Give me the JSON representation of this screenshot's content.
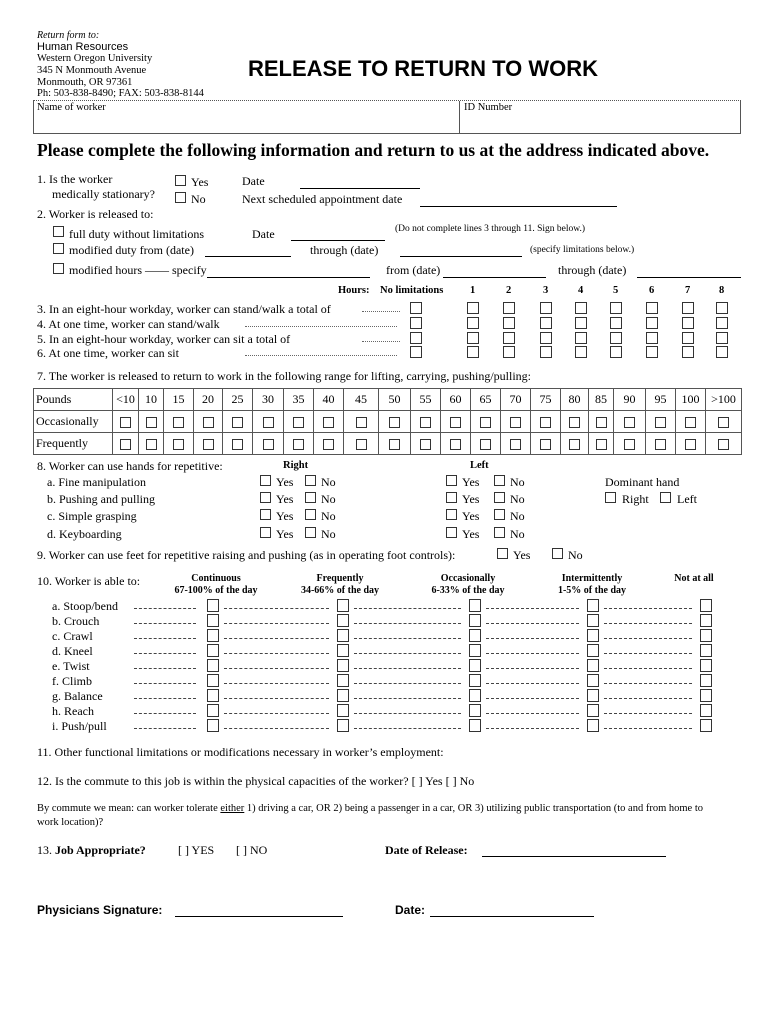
{
  "header": {
    "return_label": "Return form to:",
    "dept": "Human Resources",
    "org": "Western Oregon University",
    "street": "345 N Monmouth Avenue",
    "city": "Monmouth,  OR  97361",
    "phone": "Ph: 503-838-8490; FAX: 503-838-8144",
    "title": "RELEASE TO RETURN TO WORK"
  },
  "id_box": {
    "name_label": "Name of worker",
    "id_label": "ID Number"
  },
  "instructions": "Please complete the following information and return to us at the address indicated above.",
  "q1": {
    "label_line1": "1. Is the worker",
    "label_line2": "medically stationary?",
    "yes": "Yes",
    "no": "No",
    "date_label": "Date",
    "next_label": "Next scheduled appointment date"
  },
  "q2": {
    "label": "2. Worker is released to:",
    "full_duty": "full duty without limitations",
    "date_label": "Date",
    "full_note": "(Do not complete lines 3 through 11. Sign below.)",
    "modified_duty": "modified duty from (date)",
    "through_label": "through (date)",
    "modified_note": "(specify limitations below.)",
    "modified_hours": "modified hours —— specify",
    "from_label": "from (date)",
    "through_label2": "through (date)"
  },
  "hours": {
    "hours_label": "Hours:",
    "no_limit_label": "No limitations",
    "columns": [
      "1",
      "2",
      "3",
      "4",
      "5",
      "6",
      "7",
      "8"
    ],
    "rows": [
      "3. In an eight-hour workday, worker can stand/walk a total of",
      "4. At one time, worker can stand/walk",
      "5. In an eight-hour workday, worker can sit a total of",
      "6. At one time, worker can sit"
    ]
  },
  "q7": {
    "label": "7. The worker is released to return to work in the following range for lifting, carrying, pushing/pulling:",
    "pounds_label": "Pounds",
    "weights": [
      "<10",
      "10",
      "15",
      "20",
      "25",
      "30",
      "35",
      "40",
      "45",
      "50",
      "55",
      "60",
      "65",
      "70",
      "75",
      "80",
      "85",
      "90",
      "95",
      "100",
      ">100"
    ],
    "rows": [
      "Occasionally",
      "Frequently"
    ]
  },
  "q8": {
    "label": "8. Worker can use hands for repetitive:",
    "right": "Right",
    "left": "Left",
    "yes": "Yes",
    "no": "No",
    "items": [
      "a. Fine manipulation",
      "b. Pushing and pulling",
      "c. Simple grasping",
      "d. Keyboarding"
    ],
    "dominant_label": "Dominant hand",
    "dominant_right": "Right",
    "dominant_left": "Left"
  },
  "q9": {
    "label": "9. Worker can use feet for repetitive raising and pushing (as in operating foot controls):",
    "yes": "Yes",
    "no": "No"
  },
  "q10": {
    "label": "10. Worker is able to:",
    "columns": [
      {
        "title": "Continuous",
        "sub": "67-100% of the day"
      },
      {
        "title": "Frequently",
        "sub": "34-66% of the day"
      },
      {
        "title": "Occasionally",
        "sub": "6-33% of the day"
      },
      {
        "title": "Intermittently",
        "sub": "1-5% of the day"
      },
      {
        "title": "Not at all",
        "sub": ""
      }
    ],
    "items": [
      "a. Stoop/bend",
      "b. Crouch",
      "c. Crawl",
      "d. Kneel",
      "e. Twist",
      "f. Climb",
      "g. Balance",
      "h. Reach",
      "i. Push/pull"
    ]
  },
  "q11": "11. Other functional limitations or modifications necessary in worker’s employment:",
  "q12": "12.  Is the commute to this job is within the physical capacities of the worker?  [ ] Yes   [ ]  No",
  "commute": {
    "pre": "By commute we mean:  can worker tolerate ",
    "either": "either",
    "post": " 1) driving a car, OR 2) being a passenger in a car, OR 3) utilizing public transportation (to and from home to work location)?"
  },
  "q13": {
    "label": "13.  ",
    "label_bold": "Job Appropriate?",
    "yes": "[ ] YES",
    "no": "[ ]  NO",
    "release_label": "Date of Release:"
  },
  "signature": {
    "label": "Physicians Signature:",
    "date_label": "Date:"
  }
}
